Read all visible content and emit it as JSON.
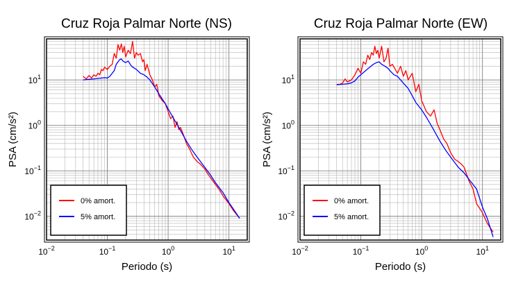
{
  "chart_data": [
    {
      "type": "line",
      "title": "Cruz Roja Palmar Norte (NS)",
      "xlabel": "Periodo (s)",
      "ylabel": "PSA (cm/s²)",
      "xscale": "log",
      "yscale": "log",
      "xlim": [
        0.01,
        20
      ],
      "ylim": [
        0.003,
        80
      ],
      "grid": true,
      "legend_position": "bottom-left",
      "x_ticks": [
        {
          "base": "10",
          "exp": "−2"
        },
        {
          "base": "10",
          "exp": "−1"
        },
        {
          "base": "10",
          "exp": "0"
        },
        {
          "base": "10",
          "exp": "1"
        }
      ],
      "y_ticks": [
        {
          "base": "10",
          "exp": "−2",
          "value": 0.01
        },
        {
          "base": "10",
          "exp": "−1",
          "value": 0.1
        },
        {
          "base": "10",
          "exp": "0",
          "value": 1
        },
        {
          "base": "10",
          "exp": "1",
          "value": 10
        }
      ],
      "series": [
        {
          "name": "0% amort.",
          "color": "#ff0000",
          "x": [
            0.04,
            0.045,
            0.05,
            0.055,
            0.06,
            0.065,
            0.07,
            0.075,
            0.08,
            0.085,
            0.09,
            0.1,
            0.11,
            0.12,
            0.13,
            0.14,
            0.15,
            0.16,
            0.17,
            0.18,
            0.19,
            0.2,
            0.22,
            0.24,
            0.26,
            0.28,
            0.3,
            0.32,
            0.35,
            0.38,
            0.4,
            0.42,
            0.45,
            0.5,
            0.55,
            0.6,
            0.65,
            0.7,
            0.8,
            0.9,
            1.0,
            1.1,
            1.2,
            1.3,
            1.4,
            1.5,
            1.6,
            1.8,
            2.0,
            2.2,
            2.4,
            2.6,
            3.0,
            3.4,
            4.0,
            4.5,
            5.0,
            6.0,
            7.0,
            8.0,
            10.0,
            12.0,
            15.0
          ],
          "y": [
            12,
            10.5,
            12.5,
            11,
            13,
            12,
            14,
            13,
            17,
            16,
            19,
            17,
            20,
            22,
            38,
            30,
            60,
            45,
            62,
            40,
            55,
            32,
            45,
            38,
            70,
            30,
            40,
            35,
            38,
            25,
            28,
            16,
            22,
            13,
            10,
            7,
            8,
            4.5,
            3.5,
            3.0,
            2.0,
            1.4,
            1.6,
            0.9,
            1.2,
            0.8,
            0.9,
            0.6,
            0.4,
            0.32,
            0.25,
            0.2,
            0.16,
            0.14,
            0.11,
            0.085,
            0.07,
            0.05,
            0.038,
            0.028,
            0.019,
            0.013,
            0.009
          ]
        },
        {
          "name": "5% amort.",
          "color": "#0000ff",
          "x": [
            0.04,
            0.05,
            0.06,
            0.07,
            0.08,
            0.09,
            0.1,
            0.11,
            0.12,
            0.13,
            0.14,
            0.15,
            0.16,
            0.17,
            0.18,
            0.2,
            0.22,
            0.25,
            0.28,
            0.3,
            0.35,
            0.4,
            0.45,
            0.5,
            0.6,
            0.7,
            0.8,
            0.9,
            1.0,
            1.2,
            1.5,
            2.0,
            2.5,
            3.0,
            4.0,
            5.0,
            6.0,
            8.0,
            10.0,
            12.0,
            15.0
          ],
          "y": [
            10,
            10.3,
            10.5,
            10.8,
            11,
            11.2,
            11,
            12,
            14,
            16,
            22,
            25,
            28,
            29,
            26,
            24,
            26,
            20,
            18,
            17,
            14,
            13,
            11.5,
            10,
            7,
            5,
            3.8,
            3.0,
            2.3,
            1.5,
            0.9,
            0.45,
            0.28,
            0.2,
            0.12,
            0.08,
            0.055,
            0.033,
            0.02,
            0.014,
            0.009
          ]
        }
      ]
    },
    {
      "type": "line",
      "title": "Cruz Roja Palmar Norte (EW)",
      "xlabel": "Periodo (s)",
      "ylabel": "PSA (cm/s²)",
      "xscale": "log",
      "yscale": "log",
      "xlim": [
        0.01,
        20
      ],
      "ylim": [
        0.003,
        80
      ],
      "grid": true,
      "legend_position": "bottom-left",
      "x_ticks": [
        {
          "base": "10",
          "exp": "−2"
        },
        {
          "base": "10",
          "exp": "−1"
        },
        {
          "base": "10",
          "exp": "0"
        },
        {
          "base": "10",
          "exp": "1"
        }
      ],
      "y_ticks": [
        {
          "base": "10",
          "exp": "−2",
          "value": 0.01
        },
        {
          "base": "10",
          "exp": "−1",
          "value": 0.1
        },
        {
          "base": "10",
          "exp": "0",
          "value": 1
        },
        {
          "base": "10",
          "exp": "1",
          "value": 10
        }
      ],
      "series": [
        {
          "name": "0% amort.",
          "color": "#ff0000",
          "x": [
            0.04,
            0.045,
            0.05,
            0.055,
            0.06,
            0.065,
            0.07,
            0.08,
            0.09,
            0.1,
            0.11,
            0.12,
            0.13,
            0.14,
            0.15,
            0.16,
            0.17,
            0.18,
            0.19,
            0.2,
            0.22,
            0.24,
            0.26,
            0.28,
            0.3,
            0.33,
            0.36,
            0.4,
            0.45,
            0.5,
            0.55,
            0.6,
            0.7,
            0.8,
            0.9,
            1.0,
            1.2,
            1.4,
            1.6,
            1.8,
            2.0,
            2.3,
            2.6,
            3.0,
            3.5,
            4.0,
            4.5,
            5.0,
            6.0,
            7.0,
            8.0,
            10.0,
            12.0,
            15.0
          ],
          "y": [
            8,
            8,
            8.5,
            10.5,
            9,
            9.5,
            10,
            13,
            18,
            14,
            25,
            22,
            35,
            28,
            40,
            35,
            55,
            38,
            45,
            30,
            55,
            25,
            30,
            50,
            20,
            22,
            18,
            14,
            20,
            12,
            16,
            10,
            14,
            5.5,
            8,
            3.5,
            2.0,
            1.6,
            2.2,
            1.1,
            0.8,
            0.5,
            0.4,
            0.25,
            0.18,
            0.16,
            0.14,
            0.12,
            0.06,
            0.04,
            0.019,
            0.012,
            0.007,
            0.0045
          ]
        },
        {
          "name": "5% amort.",
          "color": "#0000ff",
          "x": [
            0.04,
            0.05,
            0.06,
            0.07,
            0.08,
            0.09,
            0.1,
            0.12,
            0.14,
            0.16,
            0.18,
            0.2,
            0.22,
            0.25,
            0.28,
            0.3,
            0.35,
            0.4,
            0.5,
            0.6,
            0.7,
            0.8,
            1.0,
            1.2,
            1.5,
            2.0,
            2.5,
            3.0,
            4.0,
            5.0,
            6.0,
            8.0,
            10.0,
            12.0,
            15.0
          ],
          "y": [
            7.8,
            8,
            8.2,
            8.6,
            9.5,
            11.5,
            13,
            16,
            19,
            22,
            24,
            25,
            22,
            20,
            18,
            16,
            13,
            12,
            8.5,
            6.5,
            4.5,
            3.2,
            2.2,
            1.5,
            0.9,
            0.45,
            0.28,
            0.2,
            0.12,
            0.09,
            0.065,
            0.04,
            0.016,
            0.009,
            0.0035
          ]
        }
      ]
    }
  ]
}
